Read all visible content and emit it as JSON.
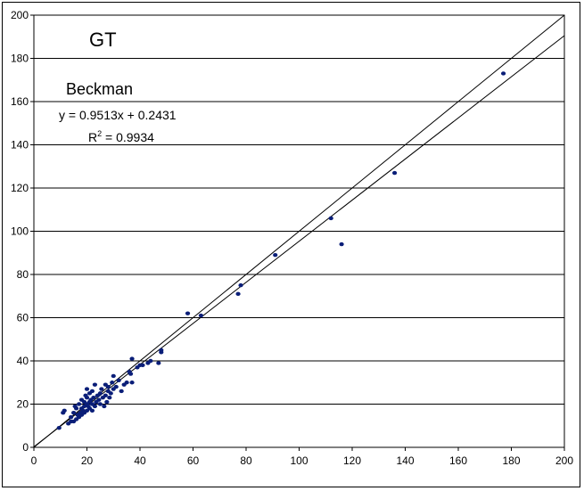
{
  "chart_data": {
    "type": "scatter",
    "title": "GT",
    "subtitle": "Beckman",
    "equation": "y = 0.9513x + 0.2431",
    "r2_prefix": "R",
    "r2_exp": "2",
    "r2_suffix": " = 0.9934",
    "xlabel": "",
    "ylabel": "",
    "xlim": [
      0,
      200
    ],
    "ylim": [
      0,
      200
    ],
    "xticks": [
      0,
      20,
      40,
      60,
      80,
      100,
      120,
      140,
      160,
      180,
      200
    ],
    "yticks": [
      0,
      20,
      40,
      60,
      80,
      100,
      120,
      140,
      160,
      180,
      200
    ],
    "grid": "horizontal",
    "point_color": "#0a1e78",
    "lines": [
      {
        "slope": 1.0,
        "intercept": 0
      },
      {
        "slope": 0.9513,
        "intercept": 0.2431
      }
    ],
    "points": [
      [
        9.5,
        9
      ],
      [
        11,
        16
      ],
      [
        11.5,
        17
      ],
      [
        13,
        11
      ],
      [
        14,
        12
      ],
      [
        14,
        14
      ],
      [
        15,
        12
      ],
      [
        15,
        16
      ],
      [
        15.5,
        19
      ],
      [
        16,
        13
      ],
      [
        16,
        18
      ],
      [
        16.5,
        15
      ],
      [
        17,
        14
      ],
      [
        17,
        20
      ],
      [
        17.5,
        16
      ],
      [
        18,
        15
      ],
      [
        18,
        18
      ],
      [
        18,
        22
      ],
      [
        18.5,
        17
      ],
      [
        19,
        16
      ],
      [
        19,
        19
      ],
      [
        19,
        21
      ],
      [
        19.5,
        24
      ],
      [
        20,
        17
      ],
      [
        20,
        20
      ],
      [
        20,
        23
      ],
      [
        20,
        27
      ],
      [
        20.5,
        19
      ],
      [
        21,
        18
      ],
      [
        21,
        21
      ],
      [
        21,
        25
      ],
      [
        21.5,
        22
      ],
      [
        22,
        17
      ],
      [
        22,
        20
      ],
      [
        22,
        26
      ],
      [
        22.5,
        23
      ],
      [
        23,
        19
      ],
      [
        23,
        29
      ],
      [
        23.5,
        21
      ],
      [
        24,
        24
      ],
      [
        24.5,
        22
      ],
      [
        25,
        20
      ],
      [
        25,
        25
      ],
      [
        25.5,
        27
      ],
      [
        26,
        23
      ],
      [
        26.5,
        19
      ],
      [
        27,
        24
      ],
      [
        27,
        29
      ],
      [
        27.5,
        21
      ],
      [
        28,
        26
      ],
      [
        28,
        28
      ],
      [
        28.5,
        23
      ],
      [
        29,
        25
      ],
      [
        29.5,
        30
      ],
      [
        30,
        27
      ],
      [
        30,
        33
      ],
      [
        31,
        28
      ],
      [
        32,
        31
      ],
      [
        33,
        26
      ],
      [
        34,
        29
      ],
      [
        35,
        30
      ],
      [
        36,
        35
      ],
      [
        36.5,
        34
      ],
      [
        37,
        30
      ],
      [
        37,
        41
      ],
      [
        39,
        37
      ],
      [
        40,
        38
      ],
      [
        41,
        38
      ],
      [
        43,
        39
      ],
      [
        44,
        40
      ],
      [
        47,
        39
      ],
      [
        48,
        44
      ],
      [
        48,
        45
      ],
      [
        58,
        62
      ],
      [
        63,
        61
      ],
      [
        77,
        71
      ],
      [
        78,
        75
      ],
      [
        91,
        89
      ],
      [
        112,
        106
      ],
      [
        116,
        94
      ],
      [
        136,
        127
      ],
      [
        177,
        173
      ]
    ]
  }
}
